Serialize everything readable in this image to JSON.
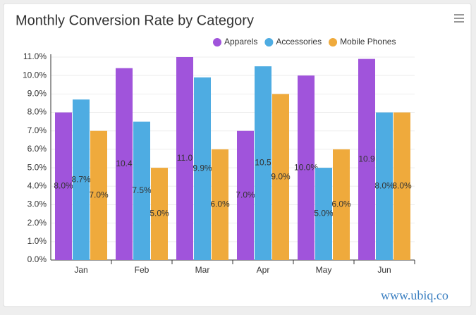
{
  "chart_data": {
    "type": "bar",
    "title": "Monthly Conversion Rate by Category",
    "categories": [
      "Jan",
      "Feb",
      "Mar",
      "Apr",
      "May",
      "Jun"
    ],
    "series": [
      {
        "name": "Apparels",
        "color": "#a054db",
        "values": [
          8.0,
          10.4,
          11.0,
          7.0,
          10.0,
          10.9
        ],
        "value_labels": [
          "8.0%",
          "10.4",
          "11.0",
          "7.0%",
          "10.0%",
          "10.9"
        ]
      },
      {
        "name": "Accessories",
        "color": "#4eace2",
        "values": [
          8.7,
          7.5,
          9.9,
          10.5,
          5.0,
          8.0
        ],
        "value_labels": [
          "8.7%",
          "7.5%",
          "9.9%",
          "10.5",
          "5.0%",
          "8.0%"
        ]
      },
      {
        "name": "Mobile Phones",
        "color": "#efaa3c",
        "values": [
          7.0,
          5.0,
          6.0,
          9.0,
          6.0,
          8.0
        ],
        "value_labels": [
          "7.0%",
          "5.0%",
          "6.0%",
          "9.0%",
          "6.0%",
          "8.0%"
        ]
      }
    ],
    "ylim": [
      0,
      11
    ],
    "yticks": [
      {
        "value": 0,
        "label": "0.0%"
      },
      {
        "value": 1,
        "label": "1.0%"
      },
      {
        "value": 2,
        "label": "2.0%"
      },
      {
        "value": 3,
        "label": "3.0%"
      },
      {
        "value": 4,
        "label": "4.0%"
      },
      {
        "value": 5,
        "label": "5.0%"
      },
      {
        "value": 6,
        "label": "6.0%"
      },
      {
        "value": 7,
        "label": "7.0%"
      },
      {
        "value": 8,
        "label": "8.0%"
      },
      {
        "value": 9,
        "label": "9.0%"
      },
      {
        "value": 10,
        "label": "10.0%"
      },
      {
        "value": 11,
        "label": "11.0%"
      }
    ],
    "grid": true,
    "legend": "top-right"
  },
  "watermark": "www.ubiq.co"
}
